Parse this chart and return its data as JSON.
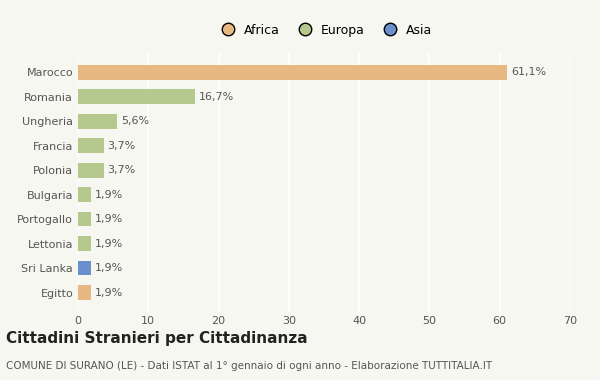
{
  "categories": [
    "Marocco",
    "Romania",
    "Ungheria",
    "Francia",
    "Polonia",
    "Bulgaria",
    "Portogallo",
    "Lettonia",
    "Sri Lanka",
    "Egitto"
  ],
  "values": [
    61.1,
    16.7,
    5.6,
    3.7,
    3.7,
    1.9,
    1.9,
    1.9,
    1.9,
    1.9
  ],
  "labels": [
    "61,1%",
    "16,7%",
    "5,6%",
    "3,7%",
    "3,7%",
    "1,9%",
    "1,9%",
    "1,9%",
    "1,9%",
    "1,9%"
  ],
  "colors": [
    "#e8b882",
    "#b5c98e",
    "#b5c98e",
    "#b5c98e",
    "#b5c98e",
    "#b5c98e",
    "#b5c98e",
    "#b5c98e",
    "#6b8fcf",
    "#e8b882"
  ],
  "legend_labels": [
    "Africa",
    "Europa",
    "Asia"
  ],
  "legend_colors": [
    "#e8b882",
    "#b5c98e",
    "#6b8fcf"
  ],
  "title": "Cittadini Stranieri per Cittadinanza",
  "subtitle": "COMUNE DI SURANO (LE) - Dati ISTAT al 1° gennaio di ogni anno - Elaborazione TUTTITALIA.IT",
  "xlim": [
    0,
    70
  ],
  "xticks": [
    0,
    10,
    20,
    30,
    40,
    50,
    60,
    70
  ],
  "background_color": "#f7f7f2",
  "grid_color": "#ffffff",
  "title_fontsize": 11,
  "subtitle_fontsize": 7.5,
  "label_fontsize": 8,
  "tick_fontsize": 8,
  "legend_fontsize": 9
}
